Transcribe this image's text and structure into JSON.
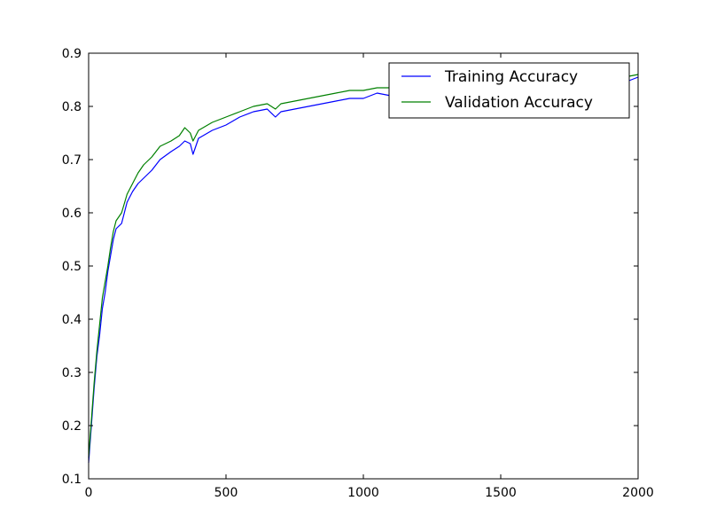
{
  "chart_data": {
    "type": "line",
    "title": "",
    "xlabel": "",
    "ylabel": "",
    "xlim": [
      0,
      2000
    ],
    "ylim": [
      0.1,
      0.9
    ],
    "x_ticks": [
      0,
      500,
      1000,
      1500,
      2000
    ],
    "y_ticks": [
      0.1,
      0.2,
      0.3,
      0.4,
      0.5,
      0.6,
      0.7,
      0.8,
      0.9
    ],
    "x_tick_labels": [
      "0",
      "500",
      "1000",
      "1500",
      "2000"
    ],
    "y_tick_labels": [
      "0.1",
      "0.2",
      "0.3",
      "0.4",
      "0.5",
      "0.6",
      "0.7",
      "0.8",
      "0.9"
    ],
    "grid": false,
    "legend_position": "top-right",
    "series": [
      {
        "name": "Training Accuracy",
        "color": "#0000ff",
        "x": [
          0,
          10,
          20,
          30,
          40,
          50,
          60,
          70,
          80,
          90,
          100,
          120,
          140,
          160,
          180,
          200,
          230,
          260,
          300,
          330,
          350,
          370,
          380,
          400,
          450,
          500,
          550,
          600,
          650,
          680,
          700,
          750,
          800,
          850,
          900,
          950,
          1000,
          1050,
          1100,
          1200,
          1300,
          1400,
          1500,
          1600,
          1700,
          1800,
          1900,
          1950,
          2000
        ],
        "y": [
          0.13,
          0.2,
          0.27,
          0.33,
          0.37,
          0.42,
          0.45,
          0.49,
          0.52,
          0.55,
          0.57,
          0.58,
          0.62,
          0.64,
          0.655,
          0.665,
          0.68,
          0.7,
          0.715,
          0.725,
          0.735,
          0.73,
          0.71,
          0.74,
          0.755,
          0.765,
          0.78,
          0.79,
          0.795,
          0.78,
          0.79,
          0.795,
          0.8,
          0.805,
          0.81,
          0.815,
          0.815,
          0.825,
          0.82,
          0.825,
          0.825,
          0.83,
          0.83,
          0.835,
          0.835,
          0.84,
          0.845,
          0.845,
          0.855
        ]
      },
      {
        "name": "Validation Accuracy",
        "color": "#008000",
        "x": [
          0,
          10,
          20,
          30,
          40,
          50,
          60,
          70,
          80,
          90,
          100,
          120,
          140,
          160,
          180,
          200,
          230,
          260,
          300,
          330,
          350,
          370,
          380,
          400,
          450,
          500,
          550,
          600,
          650,
          680,
          700,
          750,
          800,
          850,
          900,
          950,
          1000,
          1050,
          1100,
          1200,
          1300,
          1400,
          1500,
          1600,
          1700,
          1800,
          1900,
          1950,
          2000
        ],
        "y": [
          0.14,
          0.21,
          0.28,
          0.34,
          0.39,
          0.44,
          0.47,
          0.5,
          0.535,
          0.565,
          0.585,
          0.6,
          0.635,
          0.655,
          0.675,
          0.69,
          0.705,
          0.725,
          0.735,
          0.745,
          0.76,
          0.75,
          0.735,
          0.755,
          0.77,
          0.78,
          0.79,
          0.8,
          0.805,
          0.795,
          0.805,
          0.81,
          0.815,
          0.82,
          0.825,
          0.83,
          0.83,
          0.835,
          0.835,
          0.835,
          0.84,
          0.84,
          0.845,
          0.845,
          0.85,
          0.85,
          0.855,
          0.855,
          0.86
        ]
      }
    ]
  }
}
